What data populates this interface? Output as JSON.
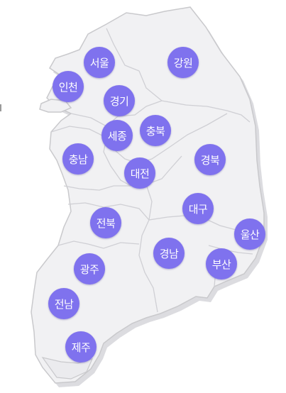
{
  "map": {
    "fill_color": "#f1f1f3",
    "border_color": "#c9c9cc",
    "shadow_color": "#dcdce0",
    "button_color": "#7f72ee",
    "regions": [
      {
        "id": "seoul",
        "label": "서울"
      },
      {
        "id": "gangwon",
        "label": "강원"
      },
      {
        "id": "incheon",
        "label": "인천"
      },
      {
        "id": "gyeonggi",
        "label": "경기"
      },
      {
        "id": "sejong",
        "label": "세종"
      },
      {
        "id": "chungbuk",
        "label": "충북"
      },
      {
        "id": "chungnam",
        "label": "충남"
      },
      {
        "id": "daejeon",
        "label": "대전"
      },
      {
        "id": "gyeongbuk",
        "label": "경북"
      },
      {
        "id": "daegu",
        "label": "대구"
      },
      {
        "id": "jeonbuk",
        "label": "전북"
      },
      {
        "id": "ulsan",
        "label": "울산"
      },
      {
        "id": "gyeongnam",
        "label": "경남"
      },
      {
        "id": "busan",
        "label": "부산"
      },
      {
        "id": "gwangju",
        "label": "광주"
      },
      {
        "id": "jeonnam",
        "label": "전남"
      },
      {
        "id": "jeju",
        "label": "제주"
      }
    ]
  }
}
